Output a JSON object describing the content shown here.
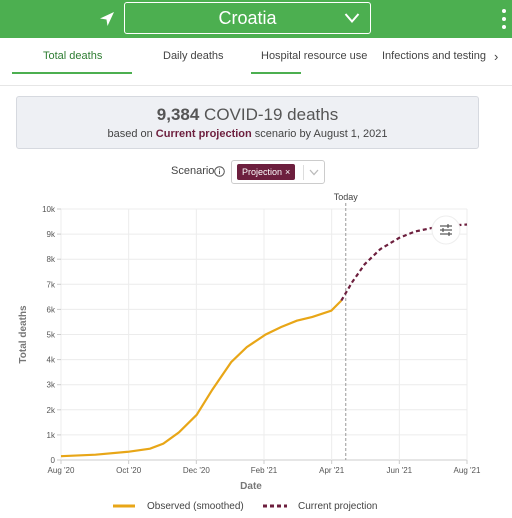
{
  "header": {
    "country": "Croatia",
    "icons": {
      "location": "location-arrow-icon",
      "dropdown": "chevron-down-icon",
      "menu": "kebab-menu-icon"
    }
  },
  "tabs": [
    {
      "label": "Total deaths",
      "active": true
    },
    {
      "label": "Daily deaths",
      "active": false
    },
    {
      "label": "Hospital resource use",
      "active": false
    },
    {
      "label": "Infections and testing",
      "active": false
    }
  ],
  "summary": {
    "count": "9,384",
    "title_suffix": " COVID-19 deaths",
    "prefix": "based on ",
    "scenario": "Current projection",
    "suffix": " scenario by August 1, 2021"
  },
  "scenario": {
    "label": "Scenario",
    "chip": "Projection",
    "chip_remove": "×"
  },
  "colors": {
    "header": "#4caf50",
    "observed": "#e8a617",
    "projection": "#6d1f3e",
    "accent": "#2e7d32"
  },
  "chart_data": {
    "type": "line",
    "today_label": "Today",
    "xlabel": "Date",
    "ylabel": "Total deaths",
    "x_ticks": [
      "Aug '20",
      "Oct '20",
      "Dec '20",
      "Feb '21",
      "Apr '21",
      "Jun '21",
      "Aug '21"
    ],
    "y_ticks": [
      "0",
      "1k",
      "2k",
      "3k",
      "4k",
      "5k",
      "6k",
      "7k",
      "8k",
      "9k",
      "10k"
    ],
    "ylim": [
      0,
      10000
    ],
    "xlim": [
      "2020-08-01",
      "2021-08-01"
    ],
    "today": "2021-04-14",
    "series": [
      {
        "name": "Observed (smoothed)",
        "style": "solid",
        "points": [
          [
            "2020-08-01",
            150
          ],
          [
            "2020-09-01",
            210
          ],
          [
            "2020-10-01",
            330
          ],
          [
            "2020-10-20",
            450
          ],
          [
            "2020-11-01",
            650
          ],
          [
            "2020-11-15",
            1100
          ],
          [
            "2020-12-01",
            1800
          ],
          [
            "2020-12-15",
            2800
          ],
          [
            "2021-01-01",
            3900
          ],
          [
            "2021-01-15",
            4500
          ],
          [
            "2021-02-01",
            5000
          ],
          [
            "2021-02-15",
            5300
          ],
          [
            "2021-03-01",
            5550
          ],
          [
            "2021-03-15",
            5700
          ],
          [
            "2021-04-01",
            5950
          ],
          [
            "2021-04-10",
            6350
          ]
        ]
      },
      {
        "name": "Current projection",
        "style": "dashed",
        "points": [
          [
            "2021-04-10",
            6350
          ],
          [
            "2021-04-20",
            7100
          ],
          [
            "2021-05-01",
            7800
          ],
          [
            "2021-05-15",
            8400
          ],
          [
            "2021-06-01",
            8850
          ],
          [
            "2021-06-15",
            9100
          ],
          [
            "2021-07-01",
            9250
          ],
          [
            "2021-07-15",
            9330
          ],
          [
            "2021-08-01",
            9384
          ]
        ]
      }
    ],
    "legend_position": "bottom"
  }
}
